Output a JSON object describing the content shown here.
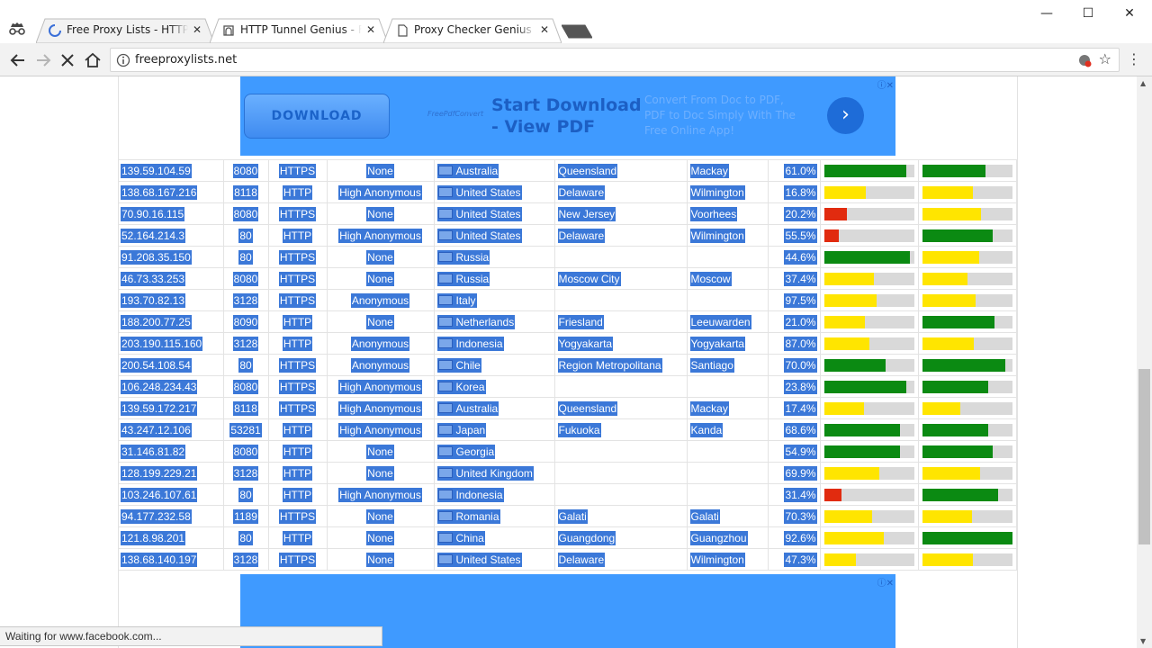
{
  "browser": {
    "tabs": [
      {
        "title": "Free Proxy Lists - HTTP P",
        "active": true,
        "icon": "loading-spinner-icon"
      },
      {
        "title": "HTTP Tunnel Genius - Fre",
        "active": false,
        "icon": "tunnel-icon"
      },
      {
        "title": "Proxy Checker Genius - C",
        "active": false,
        "icon": "document-icon"
      }
    ],
    "url": "freeproxylists.net",
    "status_text": "Waiting for www.facebook.com..."
  },
  "ad_top": {
    "button": "DOWNLOAD",
    "brand": "FreePdfConvert",
    "headline": "Start Download - View PDF",
    "description": "Convert From Doc to PDF, PDF to Doc Simply With The Free Online App!"
  },
  "proxies": [
    {
      "ip": "139.59.104.59",
      "port": "8080",
      "protocol": "HTTPS",
      "anonymity": "None",
      "country": "Australia",
      "region": "Queensland",
      "city": "Mackay",
      "uptime": "61.0%",
      "response": 0.91,
      "response_color": "#0b8a12",
      "transfer": 0.7,
      "transfer_color": "#0b8a12"
    },
    {
      "ip": "138.68.167.216",
      "port": "8118",
      "protocol": "HTTP",
      "anonymity": "High Anonymous",
      "country": "United States",
      "region": "Delaware",
      "city": "Wilmington",
      "uptime": "16.8%",
      "response": 0.46,
      "response_color": "#ffe500",
      "transfer": 0.56,
      "transfer_color": "#ffe500"
    },
    {
      "ip": "70.90.16.115",
      "port": "8080",
      "protocol": "HTTPS",
      "anonymity": "None",
      "country": "United States",
      "region": "New Jersey",
      "city": "Voorhees",
      "uptime": "20.2%",
      "response": 0.25,
      "response_color": "#e12b0f",
      "transfer": 0.65,
      "transfer_color": "#ffe500"
    },
    {
      "ip": "52.164.214.3",
      "port": "80",
      "protocol": "HTTP",
      "anonymity": "High Anonymous",
      "country": "United States",
      "region": "Delaware",
      "city": "Wilmington",
      "uptime": "55.5%",
      "response": 0.16,
      "response_color": "#e12b0f",
      "transfer": 0.78,
      "transfer_color": "#0b8a12"
    },
    {
      "ip": "91.208.35.150",
      "port": "80",
      "protocol": "HTTPS",
      "anonymity": "None",
      "country": "Russia",
      "region": "",
      "city": "",
      "uptime": "44.6%",
      "response": 0.95,
      "response_color": "#0b8a12",
      "transfer": 0.63,
      "transfer_color": "#ffe500"
    },
    {
      "ip": "46.73.33.253",
      "port": "8080",
      "protocol": "HTTPS",
      "anonymity": "None",
      "country": "Russia",
      "region": "Moscow City",
      "city": "Moscow",
      "uptime": "37.4%",
      "response": 0.55,
      "response_color": "#ffe500",
      "transfer": 0.5,
      "transfer_color": "#ffe500"
    },
    {
      "ip": "193.70.82.13",
      "port": "3128",
      "protocol": "HTTPS",
      "anonymity": "Anonymous",
      "country": "Italy",
      "region": "",
      "city": "",
      "uptime": "97.5%",
      "response": 0.58,
      "response_color": "#ffe500",
      "transfer": 0.59,
      "transfer_color": "#ffe500"
    },
    {
      "ip": "188.200.77.25",
      "port": "8090",
      "protocol": "HTTP",
      "anonymity": "None",
      "country": "Netherlands",
      "region": "Friesland",
      "city": "Leeuwarden",
      "uptime": "21.0%",
      "response": 0.45,
      "response_color": "#ffe500",
      "transfer": 0.8,
      "transfer_color": "#0b8a12"
    },
    {
      "ip": "203.190.115.160",
      "port": "3128",
      "protocol": "HTTP",
      "anonymity": "Anonymous",
      "country": "Indonesia",
      "region": "Yogyakarta",
      "city": "Yogyakarta",
      "uptime": "87.0%",
      "response": 0.5,
      "response_color": "#ffe500",
      "transfer": 0.57,
      "transfer_color": "#ffe500"
    },
    {
      "ip": "200.54.108.54",
      "port": "80",
      "protocol": "HTTPS",
      "anonymity": "Anonymous",
      "country": "Chile",
      "region": "Region Metropolitana",
      "city": "Santiago",
      "uptime": "70.0%",
      "response": 0.68,
      "response_color": "#0b8a12",
      "transfer": 0.92,
      "transfer_color": "#0b8a12"
    },
    {
      "ip": "106.248.234.43",
      "port": "8080",
      "protocol": "HTTPS",
      "anonymity": "High Anonymous",
      "country": "Korea",
      "region": "",
      "city": "",
      "uptime": "23.8%",
      "response": 0.91,
      "response_color": "#0b8a12",
      "transfer": 0.73,
      "transfer_color": "#0b8a12"
    },
    {
      "ip": "139.59.172.217",
      "port": "8118",
      "protocol": "HTTPS",
      "anonymity": "High Anonymous",
      "country": "Australia",
      "region": "Queensland",
      "city": "Mackay",
      "uptime": "17.4%",
      "response": 0.44,
      "response_color": "#ffe500",
      "transfer": 0.42,
      "transfer_color": "#ffe500"
    },
    {
      "ip": "43.247.12.106",
      "port": "53281",
      "protocol": "HTTP",
      "anonymity": "High Anonymous",
      "country": "Japan",
      "region": "Fukuoka",
      "city": "Kanda",
      "uptime": "68.6%",
      "response": 0.84,
      "response_color": "#0b8a12",
      "transfer": 0.73,
      "transfer_color": "#0b8a12"
    },
    {
      "ip": "31.146.81.82",
      "port": "8080",
      "protocol": "HTTP",
      "anonymity": "None",
      "country": "Georgia",
      "region": "",
      "city": "",
      "uptime": "54.9%",
      "response": 0.84,
      "response_color": "#0b8a12",
      "transfer": 0.78,
      "transfer_color": "#0b8a12"
    },
    {
      "ip": "128.199.229.21",
      "port": "3128",
      "protocol": "HTTP",
      "anonymity": "None",
      "country": "United Kingdom",
      "region": "",
      "city": "",
      "uptime": "69.9%",
      "response": 0.61,
      "response_color": "#ffe500",
      "transfer": 0.64,
      "transfer_color": "#ffe500"
    },
    {
      "ip": "103.246.107.61",
      "port": "80",
      "protocol": "HTTP",
      "anonymity": "High Anonymous",
      "country": "Indonesia",
      "region": "",
      "city": "",
      "uptime": "31.4%",
      "response": 0.19,
      "response_color": "#e12b0f",
      "transfer": 0.84,
      "transfer_color": "#0b8a12"
    },
    {
      "ip": "94.177.232.58",
      "port": "1189",
      "protocol": "HTTPS",
      "anonymity": "None",
      "country": "Romania",
      "region": "Galati",
      "city": "Galati",
      "uptime": "70.3%",
      "response": 0.53,
      "response_color": "#ffe500",
      "transfer": 0.55,
      "transfer_color": "#ffe500"
    },
    {
      "ip": "121.8.98.201",
      "port": "80",
      "protocol": "HTTP",
      "anonymity": "None",
      "country": "China",
      "region": "Guangdong",
      "city": "Guangzhou",
      "uptime": "92.6%",
      "response": 0.66,
      "response_color": "#ffe500",
      "transfer": 1.0,
      "transfer_color": "#0b8a12"
    },
    {
      "ip": "138.68.140.197",
      "port": "3128",
      "protocol": "HTTPS",
      "anonymity": "None",
      "country": "United States",
      "region": "Delaware",
      "city": "Wilmington",
      "uptime": "47.3%",
      "response": 0.35,
      "response_color": "#ffe500",
      "transfer": 0.56,
      "transfer_color": "#ffe500"
    }
  ]
}
